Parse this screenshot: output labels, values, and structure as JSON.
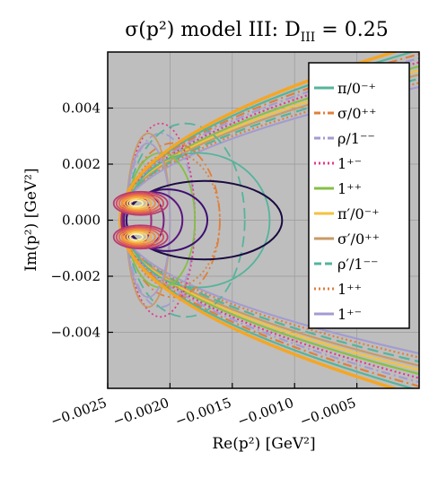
{
  "chart_data": {
    "type": "contour",
    "title": "σ(p²) model III: D_III = 0.25",
    "title_parts": {
      "main": "σ(p²) model III: D",
      "sub": "III",
      "tail": " = 0.25"
    },
    "xlabel": "Re(p²) [GeV²]",
    "ylabel": "Im(p²) [GeV²]",
    "xlim": [
      -0.0025,
      0.0
    ],
    "ylim": [
      -0.006,
      0.006
    ],
    "x_ticks": [
      -0.0025,
      -0.002,
      -0.0015,
      -0.001,
      -0.0005
    ],
    "x_tick_labels": [
      "−0.0025",
      "−0.0020",
      "−0.0015",
      "−0.0010",
      "−0.0005"
    ],
    "y_ticks": [
      0.004,
      0.002,
      0.0,
      -0.002,
      -0.004
    ],
    "y_tick_labels": [
      "0.004",
      "0.002",
      "0.000",
      "−0.002",
      "−0.004"
    ],
    "grid": true,
    "background_color": "#bebebe",
    "legend_position": "top-right",
    "parabola_vertex_re": -0.0024,
    "contour_rows": [
      {
        "x_left": -0.00235,
        "x_right": -0.0011,
        "y_half": 0.0014,
        "color": "#1a0b40"
      },
      {
        "x_left": -0.00235,
        "x_right": -0.0017,
        "y_half": 0.0011,
        "color": "#3b0f70"
      },
      {
        "x_left": -0.00237,
        "x_right": -0.0019,
        "y_half": 0.001,
        "color": "#5a167e"
      },
      {
        "x_left": -0.00238,
        "x_right": -0.00205,
        "y_half": 0.00095,
        "color": "#7a1f7f"
      },
      {
        "x_left": -0.00239,
        "x_right": -0.00215,
        "y_half": 0.0009,
        "color": "#9c2b7a"
      }
    ],
    "series": [
      {
        "name": "π/0⁻⁺",
        "color": "#55b49b",
        "dash": "solid",
        "x_right": -0.0012
      },
      {
        "name": "σ/0⁺⁺",
        "color": "#e07f3b",
        "dash": "dashdot",
        "x_right": -0.0016
      },
      {
        "name": "ρ/1⁻⁻",
        "color": "#a39bd1",
        "dash": "dashdot",
        "x_right": -0.0018
      },
      {
        "name": "1⁺⁻",
        "color": "#e5388f",
        "dash": "dot",
        "x_right": -0.0018
      },
      {
        "name": "1⁺⁺",
        "color": "#86bf46",
        "dash": "solid",
        "x_right": -0.0018
      },
      {
        "name": "π′/0⁻⁺",
        "color": "#f3c23f",
        "dash": "solid",
        "x_right": -0.002
      },
      {
        "name": "σ′/0⁺⁺",
        "color": "#c89a64",
        "dash": "solid",
        "x_right": -0.002
      },
      {
        "name": "ρ′/1⁻⁻",
        "color": "#55b49b",
        "dash": "dash",
        "x_right": -0.0014
      },
      {
        "name": "1⁺⁺",
        "color": "#e07f3b",
        "dash": "dot",
        "x_right": -0.0016
      },
      {
        "name": "1⁺⁻",
        "color": "#a39bd1",
        "dash": "solid",
        "x_right": -0.002
      }
    ],
    "boundary_color": "#f5a623",
    "legend_entries": [
      {
        "label": "π/0⁻⁺",
        "color": "#55b49b",
        "dash": "solid"
      },
      {
        "label": "σ/0⁺⁺",
        "color": "#e07f3b",
        "dash": "dashdot"
      },
      {
        "label": "ρ/1⁻⁻",
        "color": "#a39bd1",
        "dash": "dashdot"
      },
      {
        "label": "1⁺⁻",
        "color": "#e5388f",
        "dash": "dot"
      },
      {
        "label": "1⁺⁺",
        "color": "#86bf46",
        "dash": "solid"
      },
      {
        "label": "π′/0⁻⁺",
        "color": "#f3c23f",
        "dash": "solid"
      },
      {
        "label": "σ′/0⁺⁺",
        "color": "#c89a64",
        "dash": "solid"
      },
      {
        "label": "ρ′/1⁻⁻",
        "color": "#55b49b",
        "dash": "dash"
      },
      {
        "label": "1⁺⁺",
        "color": "#e07f3b",
        "dash": "dot"
      },
      {
        "label": "1⁺⁻",
        "color": "#a39bd1",
        "dash": "solid"
      }
    ]
  }
}
